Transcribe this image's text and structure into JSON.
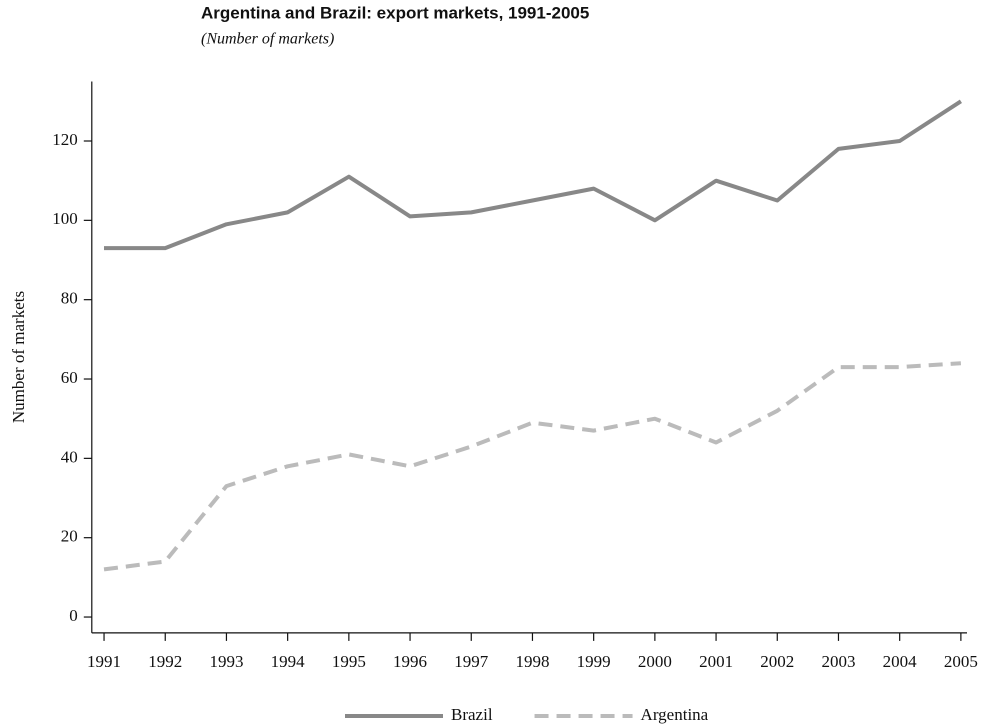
{
  "chart_data": {
    "type": "line",
    "title": "Argentina and Brazil: export markets, 1991-2005",
    "subtitle": "(Number of markets)",
    "y_label": "Number of markets",
    "x": [
      1991,
      1992,
      1993,
      1994,
      1995,
      1996,
      1997,
      1998,
      1999,
      2000,
      2001,
      2002,
      2003,
      2004,
      2005
    ],
    "series": [
      {
        "name": "Brazil",
        "color": "#888888",
        "line_style": "solid",
        "values": [
          93,
          93,
          99,
          102,
          111,
          101,
          102,
          105,
          108,
          100,
          110,
          105,
          118,
          120,
          130
        ]
      },
      {
        "name": "Argentina",
        "color": "#bbbbbb",
        "line_style": "dashed",
        "values": [
          12,
          14,
          33,
          38,
          41,
          38,
          43,
          49,
          47,
          50,
          44,
          52,
          63,
          63,
          64
        ]
      }
    ],
    "xlim": [
      1990.8,
      2005.1
    ],
    "xticks": [
      1991,
      1992,
      1993,
      1994,
      1995,
      1996,
      1997,
      1998,
      1999,
      2000,
      2001,
      2002,
      2003,
      2004,
      2005
    ],
    "ylim": [
      -4,
      135
    ],
    "yticks": [
      0,
      20,
      40,
      60,
      80,
      100,
      120
    ],
    "grid": false,
    "legend": "bottom"
  }
}
